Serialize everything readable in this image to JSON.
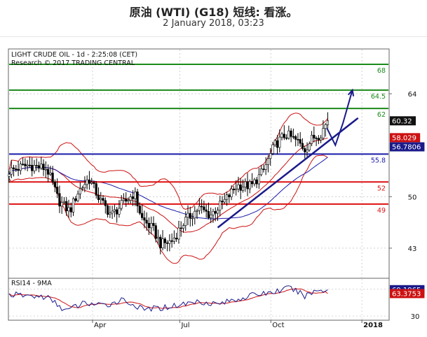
{
  "header": {
    "title": "原油 (WTI) (G18) 短线: 看涨。",
    "subtitle": "2 January 2018, 03:23"
  },
  "chart_data": [
    {
      "type": "candlestick",
      "info_line1": "LIGHT CRUDE OIL - 1d - 2:25:08 (CET)",
      "info_line2": "Research © 2017 TRADING CENTRAL",
      "ylim": [
        39,
        70
      ],
      "y_ticks": [
        {
          "value": 64,
          "label": "64"
        },
        {
          "value": 50,
          "label": "50"
        },
        {
          "value": 43,
          "label": "43"
        }
      ],
      "x_ticks": [
        {
          "t": 0.22,
          "label": "Apr"
        },
        {
          "t": 0.45,
          "label": "Jul"
        },
        {
          "t": 0.69,
          "label": "Oct"
        },
        {
          "t": 0.93,
          "label": "2018"
        }
      ],
      "levels": [
        {
          "value": 68,
          "label": "68",
          "color": "#1a8a1a"
        },
        {
          "value": 64.5,
          "label": "64.5",
          "color": "#1a8a1a"
        },
        {
          "value": 62,
          "label": "62",
          "color": "#1a8a1a"
        },
        {
          "value": 55.8,
          "label": "55.8",
          "color": "#1a1aaa"
        },
        {
          "value": 52,
          "label": "52",
          "color": "#dd1111"
        },
        {
          "value": 49,
          "label": "49",
          "color": "#dd1111"
        }
      ],
      "price_tags": [
        {
          "value": 60.32,
          "label": "60.32",
          "bg": "#111111",
          "fg": "#ffffff"
        },
        {
          "value": 58.029,
          "label": "58.029",
          "bg": "#cc1111",
          "fg": "#ffffff"
        },
        {
          "value": 56.7806,
          "label": "56.7806",
          "bg": "#1a1a8a",
          "fg": "#ffffff"
        }
      ],
      "price_anchors": [
        {
          "t": 0.0,
          "v": 53.5
        },
        {
          "t": 0.05,
          "v": 54.3
        },
        {
          "t": 0.1,
          "v": 53.8
        },
        {
          "t": 0.13,
          "v": 49.5
        },
        {
          "t": 0.16,
          "v": 48.0
        },
        {
          "t": 0.18,
          "v": 50.5
        },
        {
          "t": 0.21,
          "v": 52.5
        },
        {
          "t": 0.24,
          "v": 49.5
        },
        {
          "t": 0.27,
          "v": 47.5
        },
        {
          "t": 0.3,
          "v": 49.0
        },
        {
          "t": 0.33,
          "v": 50.5
        },
        {
          "t": 0.35,
          "v": 47.0
        },
        {
          "t": 0.38,
          "v": 45.5
        },
        {
          "t": 0.4,
          "v": 43.5
        },
        {
          "t": 0.43,
          "v": 44.0
        },
        {
          "t": 0.46,
          "v": 46.5
        },
        {
          "t": 0.5,
          "v": 48.5
        },
        {
          "t": 0.53,
          "v": 47.5
        },
        {
          "t": 0.57,
          "v": 49.5
        },
        {
          "t": 0.6,
          "v": 51.5
        },
        {
          "t": 0.64,
          "v": 51.5
        },
        {
          "t": 0.67,
          "v": 53.5
        },
        {
          "t": 0.7,
          "v": 57.0
        },
        {
          "t": 0.73,
          "v": 58.5
        },
        {
          "t": 0.76,
          "v": 57.5
        },
        {
          "t": 0.78,
          "v": 56.5
        },
        {
          "t": 0.8,
          "v": 58.0
        },
        {
          "t": 0.82,
          "v": 58.5
        },
        {
          "t": 0.84,
          "v": 60.32
        }
      ],
      "trendline": [
        {
          "t": 0.55,
          "v": 45.8
        },
        {
          "t": 0.92,
          "v": 60.7
        }
      ],
      "projection": [
        {
          "t": 0.838,
          "v": 59.3
        },
        {
          "t": 0.86,
          "v": 57.0
        },
        {
          "t": 0.88,
          "v": 60.0
        },
        {
          "t": 0.905,
          "v": 64.5
        }
      ]
    },
    {
      "type": "line",
      "label": "RSI14 - 9MA",
      "ylim": [
        25,
        85
      ],
      "y_ticks": [
        {
          "value": 30,
          "label": "30"
        }
      ],
      "price_tags": [
        {
          "value": 69.1965,
          "label": "69.1965",
          "bg": "#1a1a8a",
          "fg": "#ffffff"
        },
        {
          "value": 63.3753,
          "label": "63.3753",
          "bg": "#cc1111",
          "fg": "#ffffff"
        }
      ],
      "rsi_anchors": [
        {
          "t": 0.0,
          "v": 62
        },
        {
          "t": 0.05,
          "v": 60
        },
        {
          "t": 0.1,
          "v": 58
        },
        {
          "t": 0.15,
          "v": 38
        },
        {
          "t": 0.2,
          "v": 50
        },
        {
          "t": 0.25,
          "v": 45
        },
        {
          "t": 0.3,
          "v": 55
        },
        {
          "t": 0.35,
          "v": 40
        },
        {
          "t": 0.4,
          "v": 42
        },
        {
          "t": 0.45,
          "v": 47
        },
        {
          "t": 0.5,
          "v": 52
        },
        {
          "t": 0.55,
          "v": 48
        },
        {
          "t": 0.6,
          "v": 55
        },
        {
          "t": 0.65,
          "v": 62
        },
        {
          "t": 0.7,
          "v": 66
        },
        {
          "t": 0.74,
          "v": 72
        },
        {
          "t": 0.78,
          "v": 60
        },
        {
          "t": 0.81,
          "v": 68
        },
        {
          "t": 0.84,
          "v": 69.2
        }
      ]
    }
  ]
}
